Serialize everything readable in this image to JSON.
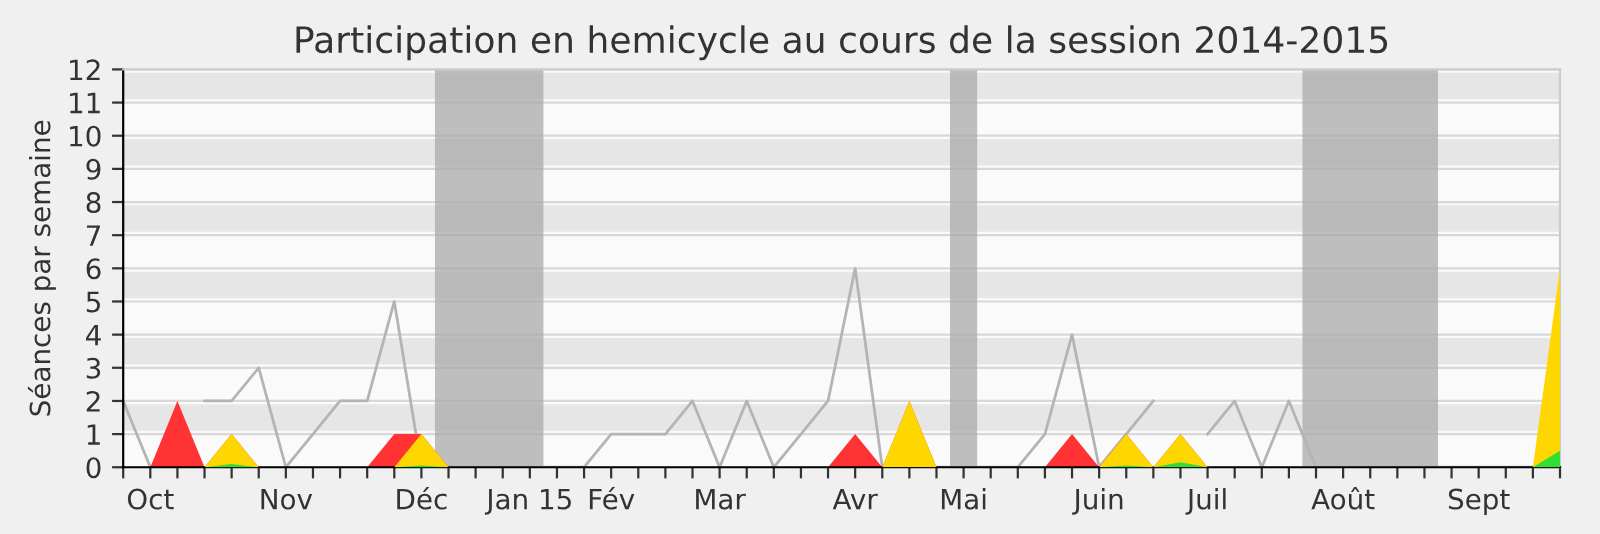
{
  "chart_data": {
    "type": "area",
    "title": "Participation en hemicycle au cours de la session 2014-2015",
    "ylabel": "Séances par semaine",
    "x": [
      "2014-09-29",
      "2014-10-06",
      "2014-10-13",
      "2014-10-20",
      "2014-10-27",
      "2014-11-03",
      "2014-11-10",
      "2014-11-17",
      "2014-11-24",
      "2014-12-01",
      "2014-12-08",
      "2014-12-15",
      "2014-12-22",
      "2014-12-29",
      "2015-01-05",
      "2015-01-12",
      "2015-01-19",
      "2015-01-26",
      "2015-02-02",
      "2015-02-09",
      "2015-02-16",
      "2015-02-23",
      "2015-03-02",
      "2015-03-09",
      "2015-03-16",
      "2015-03-23",
      "2015-03-30",
      "2015-04-06",
      "2015-04-13",
      "2015-04-20",
      "2015-04-27",
      "2015-05-04",
      "2015-05-11",
      "2015-05-18",
      "2015-05-25",
      "2015-06-01",
      "2015-06-08",
      "2015-06-15",
      "2015-06-22",
      "2015-06-29",
      "2015-07-06",
      "2015-07-13",
      "2015-07-20",
      "2015-07-27",
      "2015-08-03",
      "2015-08-10",
      "2015-08-17",
      "2015-08-24",
      "2015-08-31",
      "2015-09-07",
      "2015-09-14",
      "2015-09-21",
      "2015-09-28",
      "2015-10-05"
    ],
    "series": [
      {
        "color": "#ff3333",
        "values": [
          null,
          0,
          2,
          0,
          1,
          0,
          null,
          null,
          null,
          0,
          1,
          1,
          0,
          null,
          null,
          null,
          null,
          null,
          null,
          null,
          null,
          null,
          null,
          null,
          null,
          null,
          0,
          1,
          0,
          2,
          0,
          null,
          null,
          null,
          0,
          1,
          0,
          1,
          0,
          1,
          0,
          null,
          null,
          null,
          null,
          null,
          null,
          null,
          null,
          null,
          null,
          null,
          null,
          null
        ]
      },
      {
        "color": "#ffd700",
        "values": [
          null,
          null,
          null,
          0,
          1,
          0,
          null,
          null,
          null,
          null,
          0,
          1,
          0,
          null,
          null,
          null,
          null,
          null,
          null,
          null,
          null,
          null,
          null,
          null,
          null,
          null,
          null,
          null,
          0,
          2,
          0,
          null,
          null,
          null,
          null,
          null,
          0,
          1,
          0,
          1,
          0,
          null,
          null,
          null,
          null,
          null,
          null,
          null,
          null,
          null,
          null,
          null,
          0,
          6
        ]
      },
      {
        "color": "#33dd33",
        "values": [
          null,
          null,
          null,
          0,
          0.1,
          0,
          null,
          null,
          null,
          null,
          0,
          0.05,
          0,
          null,
          null,
          null,
          null,
          null,
          null,
          null,
          null,
          null,
          null,
          null,
          null,
          null,
          null,
          null,
          null,
          null,
          null,
          null,
          null,
          null,
          null,
          null,
          0,
          0.05,
          0,
          0.15,
          0,
          null,
          null,
          null,
          null,
          null,
          null,
          null,
          null,
          null,
          null,
          null,
          0,
          0.5
        ]
      },
      {
        "type": "line",
        "color": "#b4b4b4",
        "values": [
          2,
          0,
          null,
          2,
          2,
          3,
          0,
          1,
          2,
          2,
          5,
          0,
          0,
          0,
          0,
          0,
          0,
          0,
          1,
          1,
          1,
          2,
          0,
          2,
          0,
          1,
          2,
          6,
          0,
          0,
          0,
          0,
          0,
          0,
          1,
          4,
          0,
          1,
          2,
          null,
          1,
          2,
          0,
          2,
          0,
          0,
          0,
          0,
          0,
          0,
          0,
          0,
          0,
          null
        ]
      }
    ],
    "bands": [
      {
        "axis": "x",
        "from": "2014-12-18T12:00",
        "to": "2015-01-15T12:00",
        "color": "#aaaaaa"
      },
      {
        "axis": "x",
        "from": "2015-04-30T12:00",
        "to": "2015-05-07T12:00",
        "color": "#aaaaaa"
      },
      {
        "axis": "x",
        "from": "2015-07-30T12:00",
        "to": "2015-09-03T12:00",
        "color": "#aaaaaa"
      }
    ],
    "xlim": [
      "2014-09-29",
      "2015-10-05"
    ],
    "xticks": [
      {
        "value": "2014-09-29",
        "label": null
      },
      {
        "value": "2014-10-06",
        "label": "Oct"
      },
      {
        "value": "2014-10-13",
        "label": null
      },
      {
        "value": "2014-10-20",
        "label": null
      },
      {
        "value": "2014-10-27",
        "label": null
      },
      {
        "value": "2014-11-03",
        "label": null
      },
      {
        "value": "2014-11-10",
        "label": "Nov"
      },
      {
        "value": "2014-11-17",
        "label": null
      },
      {
        "value": "2014-11-24",
        "label": null
      },
      {
        "value": "2014-12-01",
        "label": null
      },
      {
        "value": "2014-12-08",
        "label": null
      },
      {
        "value": "2014-12-15",
        "label": "Déc"
      },
      {
        "value": "2014-12-22",
        "label": null
      },
      {
        "value": "2014-12-29",
        "label": null
      },
      {
        "value": "2015-01-05",
        "label": null
      },
      {
        "value": "2015-01-12",
        "label": "Jan 15"
      },
      {
        "value": "2015-01-19",
        "label": null
      },
      {
        "value": "2015-01-26",
        "label": null
      },
      {
        "value": "2015-02-02",
        "label": "Fév"
      },
      {
        "value": "2015-02-09",
        "label": null
      },
      {
        "value": "2015-02-16",
        "label": null
      },
      {
        "value": "2015-02-23",
        "label": null
      },
      {
        "value": "2015-03-02",
        "label": "Mar"
      },
      {
        "value": "2015-03-09",
        "label": null
      },
      {
        "value": "2015-03-16",
        "label": null
      },
      {
        "value": "2015-03-23",
        "label": null
      },
      {
        "value": "2015-03-30",
        "label": null
      },
      {
        "value": "2015-04-06",
        "label": "Avr"
      },
      {
        "value": "2015-04-13",
        "label": null
      },
      {
        "value": "2015-04-20",
        "label": null
      },
      {
        "value": "2015-04-27",
        "label": null
      },
      {
        "value": "2015-05-04",
        "label": "Mai"
      },
      {
        "value": "2015-05-11",
        "label": null
      },
      {
        "value": "2015-05-18",
        "label": null
      },
      {
        "value": "2015-05-25",
        "label": null
      },
      {
        "value": "2015-06-01",
        "label": null
      },
      {
        "value": "2015-06-08",
        "label": "Juin"
      },
      {
        "value": "2015-06-15",
        "label": null
      },
      {
        "value": "2015-06-22",
        "label": null
      },
      {
        "value": "2015-06-29",
        "label": null
      },
      {
        "value": "2015-07-06",
        "label": "Juil"
      },
      {
        "value": "2015-07-13",
        "label": null
      },
      {
        "value": "2015-07-20",
        "label": null
      },
      {
        "value": "2015-07-27",
        "label": null
      },
      {
        "value": "2015-08-03",
        "label": null
      },
      {
        "value": "2015-08-10",
        "label": "Août"
      },
      {
        "value": "2015-08-17",
        "label": null
      },
      {
        "value": "2015-08-24",
        "label": null
      },
      {
        "value": "2015-08-31",
        "label": null
      },
      {
        "value": "2015-09-07",
        "label": null
      },
      {
        "value": "2015-09-14",
        "label": "Sept"
      },
      {
        "value": "2015-09-21",
        "label": null
      },
      {
        "value": "2015-09-28",
        "label": null
      },
      {
        "value": "2015-10-05",
        "label": null
      }
    ],
    "ylim": [
      0,
      12
    ],
    "yticks": [
      0,
      1,
      2,
      3,
      4,
      5,
      6,
      7,
      8,
      9,
      10,
      11,
      12
    ],
    "grid": "y",
    "legend": false
  }
}
